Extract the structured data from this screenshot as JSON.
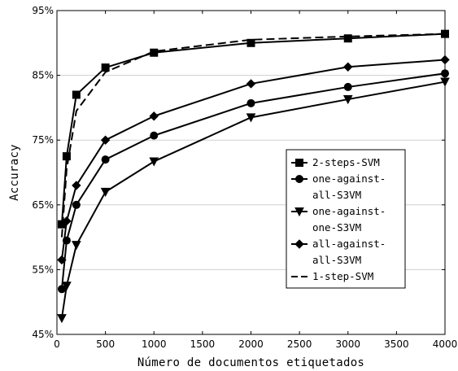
{
  "chart_data": {
    "type": "line",
    "title": "",
    "xlabel": "Número de documentos etiquetados",
    "ylabel": "Accuracy",
    "xlim": [
      0,
      4000
    ],
    "ylim": [
      45,
      95
    ],
    "x_ticks": [
      "0",
      "500",
      "1000",
      "1500",
      "2000",
      "2500",
      "3000",
      "3500",
      "4000"
    ],
    "y_ticks": [
      "45%",
      "55%",
      "65%",
      "75%",
      "85%",
      "95%"
    ],
    "grid": "horizontal",
    "legend_position": "center-right",
    "x": [
      50,
      100,
      200,
      500,
      1000,
      2000,
      3000,
      4000
    ],
    "series": [
      {
        "name": "2-steps-SVM",
        "marker": "square",
        "dash": "solid",
        "values": [
          62.0,
          72.5,
          82.0,
          86.2,
          88.5,
          90.0,
          90.7,
          91.4
        ]
      },
      {
        "name": "one-against-all-S3VM",
        "legend_lines": [
          "one-against-",
          "all-S3VM"
        ],
        "marker": "circle",
        "dash": "solid",
        "values": [
          52.0,
          59.5,
          65.0,
          72.0,
          75.7,
          80.7,
          83.2,
          85.3
        ]
      },
      {
        "name": "one-against-one-S3VM",
        "legend_lines": [
          "one-against-",
          "one-S3VM"
        ],
        "marker": "triangle-down",
        "dash": "solid",
        "values": [
          47.5,
          52.5,
          58.8,
          67.0,
          71.7,
          78.5,
          81.3,
          84.0
        ]
      },
      {
        "name": "all-against-all-S3VM",
        "legend_lines": [
          "all-against-",
          "all-S3VM"
        ],
        "marker": "diamond",
        "dash": "solid",
        "values": [
          56.5,
          62.5,
          68.0,
          75.0,
          78.7,
          83.7,
          86.3,
          87.4
        ]
      },
      {
        "name": "1-step-SVM",
        "marker": "none",
        "dash": "dashed",
        "values": [
          60.0,
          70.5,
          79.5,
          85.5,
          88.7,
          90.5,
          91.0,
          91.4
        ]
      }
    ]
  }
}
